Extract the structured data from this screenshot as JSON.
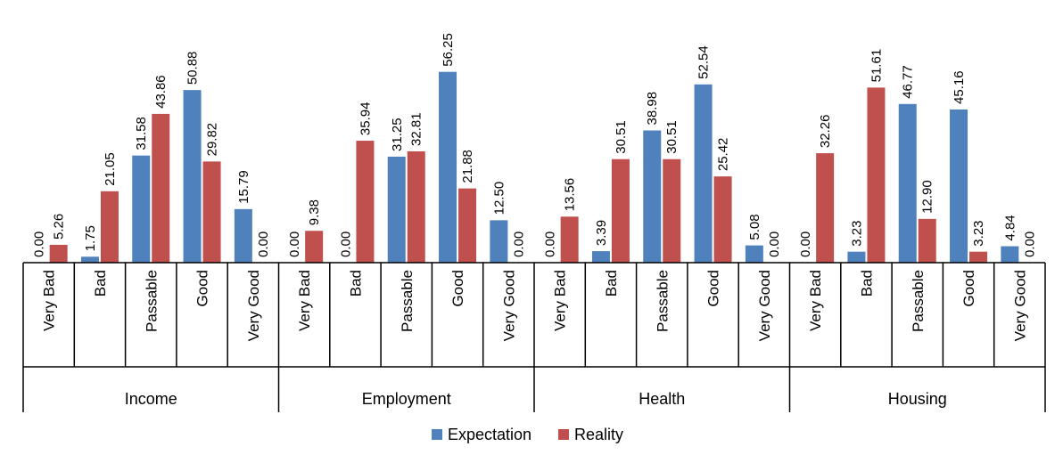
{
  "chart_data": {
    "type": "bar",
    "groups": [
      {
        "name": "Income",
        "categories": [
          "Very Bad",
          "Bad",
          "Passable",
          "Good",
          "Very Good"
        ],
        "values": {
          "Expectation": [
            0.0,
            1.75,
            31.58,
            50.88,
            15.79
          ],
          "Reality": [
            5.26,
            21.05,
            43.86,
            29.82,
            0.0
          ]
        }
      },
      {
        "name": "Employment",
        "categories": [
          "Very Bad",
          "Bad",
          "Passable",
          "Good",
          "Very Good"
        ],
        "values": {
          "Expectation": [
            0.0,
            0.0,
            31.25,
            56.25,
            12.5
          ],
          "Reality": [
            9.38,
            35.94,
            32.81,
            21.88,
            0.0
          ]
        }
      },
      {
        "name": "Health",
        "categories": [
          "Very Bad",
          "Bad",
          "Passable",
          "Good",
          "Very Good"
        ],
        "values": {
          "Expectation": [
            0.0,
            3.39,
            38.98,
            52.54,
            5.08
          ],
          "Reality": [
            13.56,
            30.51,
            30.51,
            25.42,
            0.0
          ]
        }
      },
      {
        "name": "Housing",
        "categories": [
          "Very Bad",
          "Bad",
          "Passable",
          "Good",
          "Very Good"
        ],
        "values": {
          "Expectation": [
            0.0,
            3.23,
            46.77,
            45.16,
            4.84
          ],
          "Reality": [
            32.26,
            51.61,
            12.9,
            3.23,
            0.0
          ]
        }
      }
    ],
    "series": [
      {
        "name": "Expectation",
        "color": "#4F81BD"
      },
      {
        "name": "Reality",
        "color": "#C0504D"
      }
    ],
    "ylim": [
      0,
      60
    ],
    "grid": false,
    "legend": "bottom-center"
  }
}
